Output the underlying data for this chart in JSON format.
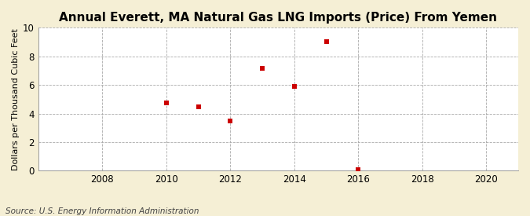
{
  "title": "Annual Everett, MA Natural Gas LNG Imports (Price) From Yemen",
  "ylabel": "Dollars per Thousand Cubic Feet",
  "source": "Source: U.S. Energy Information Administration",
  "outer_bg_color": "#f5efd5",
  "plot_bg_color": "#ffffff",
  "x_data": [
    2010,
    2011,
    2012,
    2013,
    2014,
    2015,
    2016
  ],
  "y_data": [
    4.75,
    4.45,
    3.5,
    7.15,
    5.9,
    9.05,
    0.05
  ],
  "marker_color": "#cc0000",
  "marker": "s",
  "marker_size": 4,
  "xlim": [
    2006,
    2021
  ],
  "ylim": [
    0,
    10
  ],
  "xticks": [
    2008,
    2010,
    2012,
    2014,
    2016,
    2018,
    2020
  ],
  "yticks": [
    0,
    2,
    4,
    6,
    8,
    10
  ],
  "grid_color": "#aaaaaa",
  "grid_style": "--",
  "title_fontsize": 11,
  "label_fontsize": 8,
  "tick_fontsize": 8.5,
  "source_fontsize": 7.5
}
